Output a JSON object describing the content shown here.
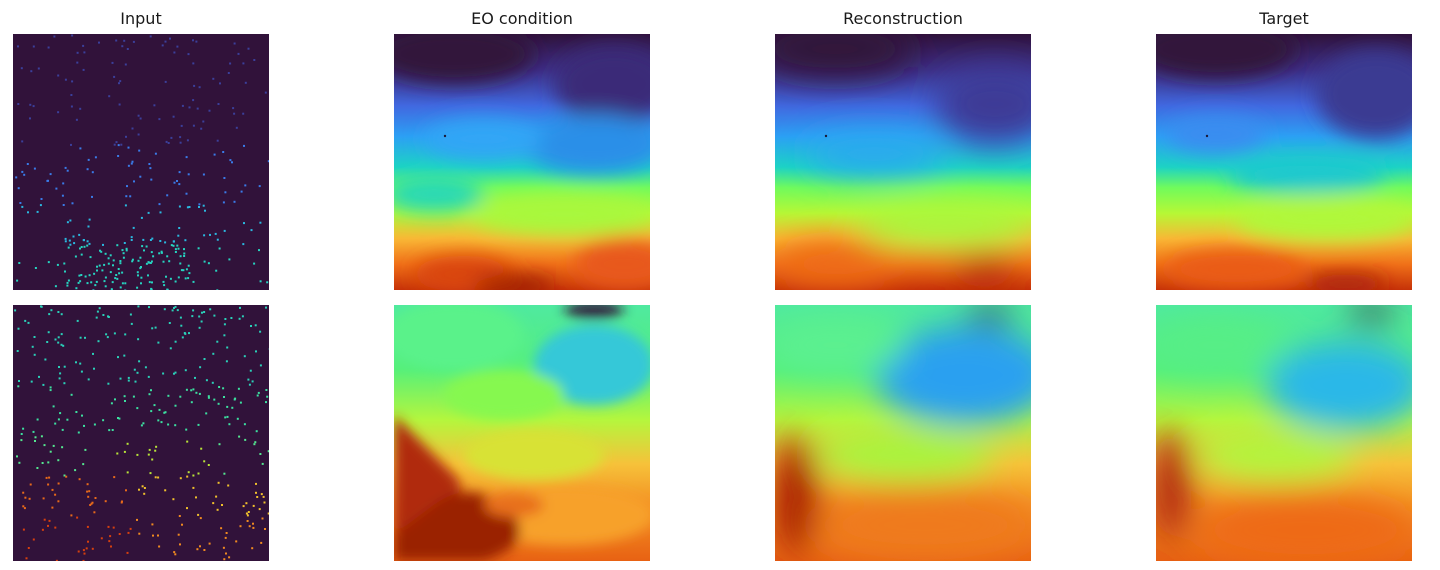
{
  "columns": [
    {
      "title": "Input"
    },
    {
      "title": "EO condition"
    },
    {
      "title": "Reconstruction"
    },
    {
      "title": "Target"
    }
  ],
  "colormap": "turbo",
  "background_color": "#31123a",
  "rows": 2
}
